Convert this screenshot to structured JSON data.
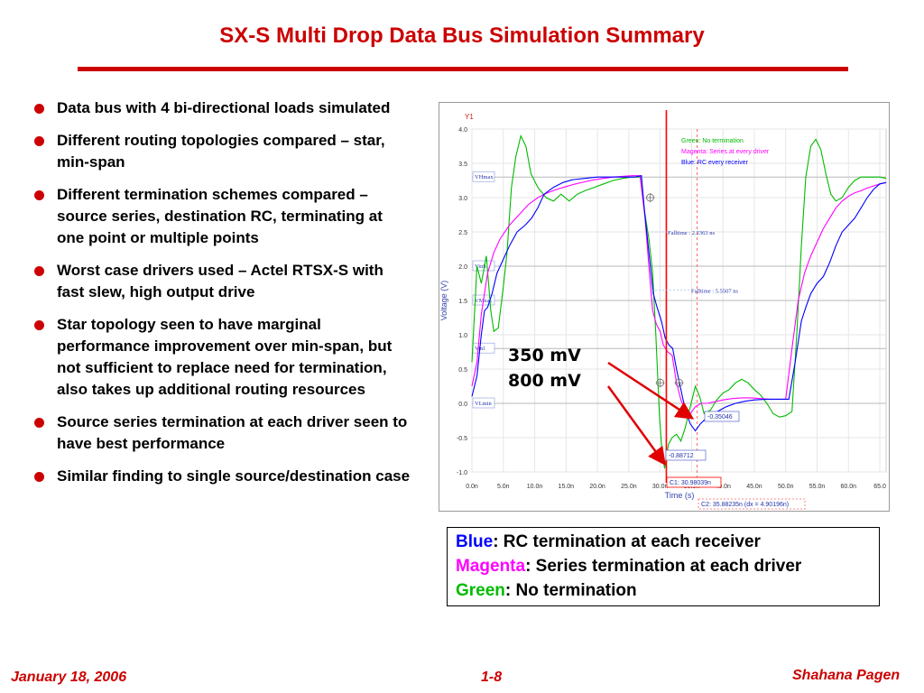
{
  "slide": {
    "title": "SX-S Multi Drop Data Bus Simulation Summary",
    "bullets": [
      "Data bus with 4 bi-directional loads simulated",
      "Different routing topologies compared – star,  min-span",
      "Different termination schemes compared – source series, destination RC, terminating at one point or multiple points",
      "Worst case drivers used – Actel RTSX-S with fast slew, high output drive",
      "Star topology seen to have marginal performance improvement over min-span, but not sufficient to replace need for termination, also takes up additional routing resources",
      "Source series termination at each driver seen to have best performance",
      "Similar finding to single source/destination case"
    ],
    "annotations": {
      "mv350": "350 mV",
      "mv800": "800 mV"
    },
    "legend": {
      "blue_word": "Blue",
      "blue_text": ": RC termination at each receiver",
      "magenta_word": "Magenta",
      "magenta_text": ": Series termination at each driver",
      "green_word": "Green",
      "green_text": ": No termination"
    },
    "footer": {
      "date": "January 18, 2006",
      "page": "1-8",
      "author": "Shahana Pagen"
    },
    "colors": {
      "accent": "#cc0000",
      "blue": "#0000ff",
      "magenta": "#ff00ff",
      "green": "#00bb00"
    }
  },
  "chart_data": {
    "type": "line",
    "y_axis_title": "Y1",
    "xlabel": "Time (s)",
    "ylabel": "Voltage (V)",
    "xlim": [
      0,
      66
    ],
    "ylim": [
      -1.0,
      4.0
    ],
    "x_ticks": [
      "0.0n",
      "5.0n",
      "10.0n",
      "15.0n",
      "20.0n",
      "25.0n",
      "30.0n",
      "35.0n",
      "40.0n",
      "45.0n",
      "50.0n",
      "55.0n",
      "60.0n",
      "65.0"
    ],
    "y_ticks": [
      "4.0",
      "3.5",
      "3.0",
      "2.5",
      "2.0",
      "1.5",
      "1.0",
      "0.5",
      "0.0",
      "-0.5",
      "-1.0"
    ],
    "levels": [
      {
        "label": "VHmax",
        "value": 3.3
      },
      {
        "label": "Vinh",
        "value": 2.0
      },
      {
        "label": "VMeas",
        "value": 1.5
      },
      {
        "label": "Vinl",
        "value": 0.8
      },
      {
        "label": "VLmin",
        "value": 0.0
      }
    ],
    "legend": [
      "Green: No termination",
      "Magenta: Series at every driver",
      "Blue: RC every receiver"
    ],
    "markers": {
      "c1_label": "C1: 30.98039n",
      "c1_x": 30.98,
      "c2_label": "C2: 35.88235n (dx = 4.90196n)",
      "c2_x": 35.88,
      "falltime1": "Falltime : 2.2363 ns",
      "falltime2": "Falltime : 5.5507 ns",
      "value1": "-0.35046",
      "value2": "-0.88712"
    },
    "series": [
      {
        "name": "Green: No termination",
        "color": "#00bb00",
        "points": [
          [
            0,
            0.6
          ],
          [
            0.8,
            2.0
          ],
          [
            1.5,
            1.75
          ],
          [
            2.3,
            2.15
          ],
          [
            3.0,
            1.35
          ],
          [
            3.5,
            1.05
          ],
          [
            4.2,
            1.1
          ],
          [
            5,
            1.7
          ],
          [
            5.6,
            2.2
          ],
          [
            6.3,
            3.15
          ],
          [
            7,
            3.6
          ],
          [
            7.8,
            3.9
          ],
          [
            8.6,
            3.75
          ],
          [
            9.4,
            3.35
          ],
          [
            10.5,
            3.15
          ],
          [
            11.8,
            3.0
          ],
          [
            13,
            2.95
          ],
          [
            14.2,
            3.05
          ],
          [
            15.5,
            2.95
          ],
          [
            16.8,
            3.05
          ],
          [
            18,
            3.1
          ],
          [
            19.5,
            3.15
          ],
          [
            21,
            3.2
          ],
          [
            22.5,
            3.25
          ],
          [
            24,
            3.28
          ],
          [
            25.5,
            3.3
          ],
          [
            26.8,
            3.3
          ],
          [
            27.5,
            2.8
          ],
          [
            28.2,
            2.4
          ],
          [
            28.8,
            1.9
          ],
          [
            29.3,
            1.0
          ],
          [
            29.9,
            -0.2
          ],
          [
            30.3,
            -0.7
          ],
          [
            30.7,
            -0.95
          ],
          [
            31.3,
            -0.6
          ],
          [
            31.9,
            -0.5
          ],
          [
            32.6,
            -0.45
          ],
          [
            33.3,
            -0.55
          ],
          [
            34,
            -0.35
          ],
          [
            34.8,
            -0.05
          ],
          [
            35.6,
            0.25
          ],
          [
            36.3,
            0.1
          ],
          [
            37,
            -0.15
          ],
          [
            38,
            -0.1
          ],
          [
            39,
            0.05
          ],
          [
            40,
            0.15
          ],
          [
            41,
            0.2
          ],
          [
            42,
            0.3
          ],
          [
            43,
            0.35
          ],
          [
            44,
            0.3
          ],
          [
            45,
            0.2
          ],
          [
            46,
            0.12
          ],
          [
            47,
            0.0
          ],
          [
            48,
            -0.15
          ],
          [
            49,
            -0.2
          ],
          [
            50,
            -0.18
          ],
          [
            51,
            -0.12
          ],
          [
            51.8,
            1.05
          ],
          [
            52.5,
            2.3
          ],
          [
            53.2,
            3.3
          ],
          [
            54,
            3.75
          ],
          [
            54.8,
            3.85
          ],
          [
            55.6,
            3.7
          ],
          [
            56.4,
            3.35
          ],
          [
            57.2,
            3.05
          ],
          [
            58,
            2.95
          ],
          [
            59,
            3.0
          ],
          [
            60,
            3.15
          ],
          [
            61,
            3.25
          ],
          [
            62,
            3.3
          ],
          [
            63,
            3.3
          ],
          [
            64,
            3.3
          ],
          [
            65,
            3.3
          ],
          [
            66,
            3.28
          ]
        ]
      },
      {
        "name": "Magenta: Series at every driver",
        "color": "#ff00ff",
        "points": [
          [
            0,
            0.25
          ],
          [
            0.8,
            0.6
          ],
          [
            1.5,
            1.3
          ],
          [
            2.5,
            1.9
          ],
          [
            3.5,
            2.2
          ],
          [
            4.5,
            2.4
          ],
          [
            6,
            2.6
          ],
          [
            7.5,
            2.75
          ],
          [
            9,
            2.9
          ],
          [
            10.5,
            3.0
          ],
          [
            12,
            3.07
          ],
          [
            13.5,
            3.12
          ],
          [
            15,
            3.16
          ],
          [
            16.5,
            3.2
          ],
          [
            18,
            3.23
          ],
          [
            19.5,
            3.26
          ],
          [
            21,
            3.28
          ],
          [
            22.5,
            3.3
          ],
          [
            24,
            3.31
          ],
          [
            25.5,
            3.32
          ],
          [
            26.8,
            3.32
          ],
          [
            27.6,
            2.7
          ],
          [
            28.2,
            2.0
          ],
          [
            28.8,
            1.35
          ],
          [
            29.4,
            1.15
          ],
          [
            30,
            1.05
          ],
          [
            30.5,
            0.85
          ],
          [
            31.2,
            0.75
          ],
          [
            31.9,
            0.7
          ],
          [
            32.6,
            0.3
          ],
          [
            33.3,
            0.05
          ],
          [
            34,
            -0.1
          ],
          [
            34.8,
            -0.15
          ],
          [
            35.6,
            -0.05
          ],
          [
            36.5,
            0.0
          ],
          [
            37.5,
            0.0
          ],
          [
            38.5,
            0.02
          ],
          [
            40,
            0.05
          ],
          [
            41.5,
            0.07
          ],
          [
            43,
            0.08
          ],
          [
            44.5,
            0.08
          ],
          [
            46,
            0.07
          ],
          [
            47.5,
            0.06
          ],
          [
            49,
            0.06
          ],
          [
            50,
            0.06
          ],
          [
            51,
            0.8
          ],
          [
            52,
            1.5
          ],
          [
            53,
            1.9
          ],
          [
            54,
            2.15
          ],
          [
            55,
            2.35
          ],
          [
            56,
            2.55
          ],
          [
            57,
            2.7
          ],
          [
            58,
            2.85
          ],
          [
            59,
            2.95
          ],
          [
            60,
            3.02
          ],
          [
            61,
            3.07
          ],
          [
            62,
            3.1
          ],
          [
            63,
            3.14
          ],
          [
            64,
            3.17
          ],
          [
            65,
            3.2
          ],
          [
            66,
            3.22
          ]
        ]
      },
      {
        "name": "Blue: RC every receiver",
        "color": "#0000ff",
        "points": [
          [
            0,
            0.1
          ],
          [
            0.8,
            0.4
          ],
          [
            1.5,
            1.0
          ],
          [
            2,
            1.35
          ],
          [
            2.5,
            1.4
          ],
          [
            3.2,
            1.6
          ],
          [
            4,
            1.9
          ],
          [
            5,
            2.1
          ],
          [
            6,
            2.3
          ],
          [
            7.2,
            2.5
          ],
          [
            8.5,
            2.6
          ],
          [
            9.5,
            2.7
          ],
          [
            10.5,
            2.85
          ],
          [
            11.5,
            3.05
          ],
          [
            13,
            3.15
          ],
          [
            14.5,
            3.22
          ],
          [
            16,
            3.26
          ],
          [
            18,
            3.28
          ],
          [
            20,
            3.3
          ],
          [
            22,
            3.3
          ],
          [
            24,
            3.3
          ],
          [
            26,
            3.3
          ],
          [
            27,
            3.32
          ],
          [
            27.5,
            2.8
          ],
          [
            28.2,
            2.2
          ],
          [
            28.9,
            1.6
          ],
          [
            29.5,
            1.4
          ],
          [
            30.2,
            1.2
          ],
          [
            30.8,
            0.95
          ],
          [
            31.4,
            0.85
          ],
          [
            32,
            0.8
          ],
          [
            32.6,
            0.5
          ],
          [
            33.3,
            0.2
          ],
          [
            34,
            -0.1
          ],
          [
            34.8,
            -0.3
          ],
          [
            35.6,
            -0.4
          ],
          [
            36.4,
            -0.3
          ],
          [
            37.5,
            -0.2
          ],
          [
            38.5,
            -0.15
          ],
          [
            39.5,
            -0.1
          ],
          [
            40.5,
            -0.05
          ],
          [
            42,
            0.0
          ],
          [
            43.5,
            0.03
          ],
          [
            45,
            0.05
          ],
          [
            47,
            0.06
          ],
          [
            49,
            0.06
          ],
          [
            50.5,
            0.06
          ],
          [
            51.5,
            0.6
          ],
          [
            52.5,
            1.2
          ],
          [
            53.2,
            1.4
          ],
          [
            54,
            1.6
          ],
          [
            55,
            1.75
          ],
          [
            56,
            1.85
          ],
          [
            57,
            2.05
          ],
          [
            58,
            2.3
          ],
          [
            59,
            2.5
          ],
          [
            60,
            2.6
          ],
          [
            61,
            2.7
          ],
          [
            62,
            2.85
          ],
          [
            63,
            3.0
          ],
          [
            64,
            3.12
          ],
          [
            65,
            3.2
          ],
          [
            66,
            3.22
          ]
        ]
      }
    ]
  }
}
